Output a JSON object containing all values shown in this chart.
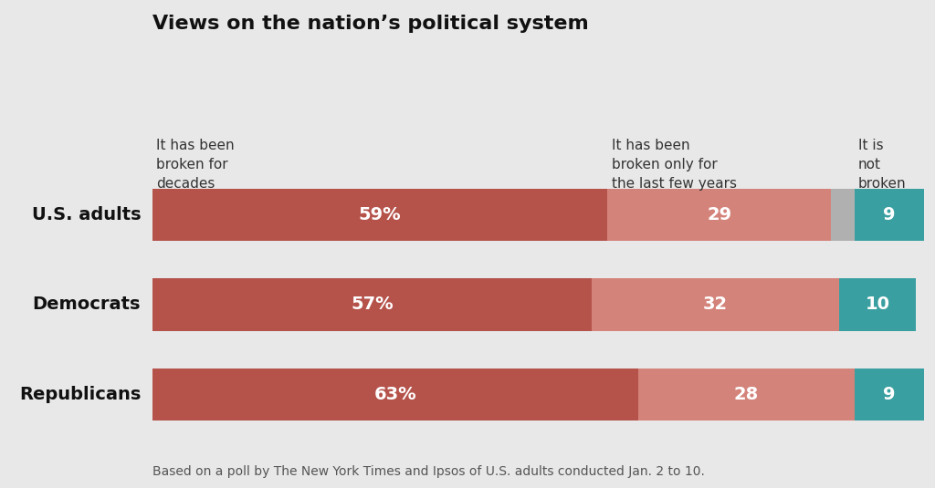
{
  "title": "Views on the nation’s political system",
  "footnote": "Based on a poll by The New York Times and Ipsos of U.S. adults conducted Jan. 2 to 10.",
  "categories": [
    "U.S. adults",
    "Democrats",
    "Republicans"
  ],
  "col_headers": [
    "It has been\nbroken for\ndecades",
    "It has been\nbroken only for\nthe last few years",
    "It is\nnot\nbroken"
  ],
  "row_segments": [
    {
      "segs": [
        59,
        29,
        3,
        9
      ],
      "colors": [
        "#b5524a",
        "#d4837a",
        "#b0b0b0",
        "#3a9fa0"
      ],
      "labels": [
        "59%",
        "29",
        "",
        "9"
      ]
    },
    {
      "segs": [
        57,
        32,
        0,
        10
      ],
      "colors": [
        "#b5524a",
        "#d4837a",
        "#3a9fa0",
        "#3a9fa0"
      ],
      "labels": [
        "57%",
        "32",
        "",
        "10"
      ]
    },
    {
      "segs": [
        63,
        28,
        0,
        9
      ],
      "colors": [
        "#b5524a",
        "#d4837a",
        "#3a9fa0",
        "#3a9fa0"
      ],
      "labels": [
        "63%",
        "28",
        "",
        "9"
      ]
    }
  ],
  "background_color": "#e8e8e8",
  "title_fontsize": 16,
  "label_fontsize": 14,
  "category_fontsize": 14,
  "header_fontsize": 11,
  "footnote_fontsize": 10
}
